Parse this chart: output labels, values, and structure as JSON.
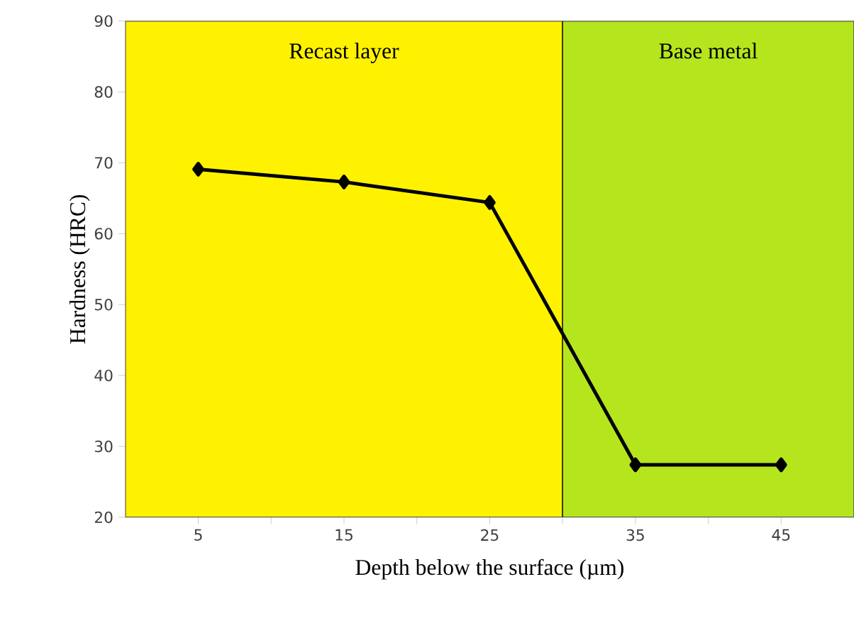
{
  "chart_data": {
    "type": "line",
    "xlabel": "Depth below the surface (µm)",
    "ylabel": "Hardness (HRC)",
    "x": [
      5,
      15,
      25,
      35,
      45
    ],
    "series": [
      {
        "color": "#000000",
        "values": [
          69.1,
          67.3,
          64.4,
          27.4,
          27.4
        ]
      }
    ],
    "xlim": [
      0,
      50
    ],
    "xticks": [
      5,
      15,
      25,
      35,
      45
    ],
    "ylim": [
      20,
      90
    ],
    "yticks": [
      20,
      30,
      40,
      50,
      60,
      70,
      80,
      90
    ],
    "bands": [
      {
        "axis": "x",
        "from": 0,
        "to": 30,
        "label": "Recast layer",
        "color": "#fff200"
      },
      {
        "axis": "x",
        "from": 30,
        "to": 50,
        "label": "Base metal",
        "color": "#b5e61d"
      }
    ],
    "marker": "diamond",
    "line_style": "solid",
    "grid": false
  }
}
